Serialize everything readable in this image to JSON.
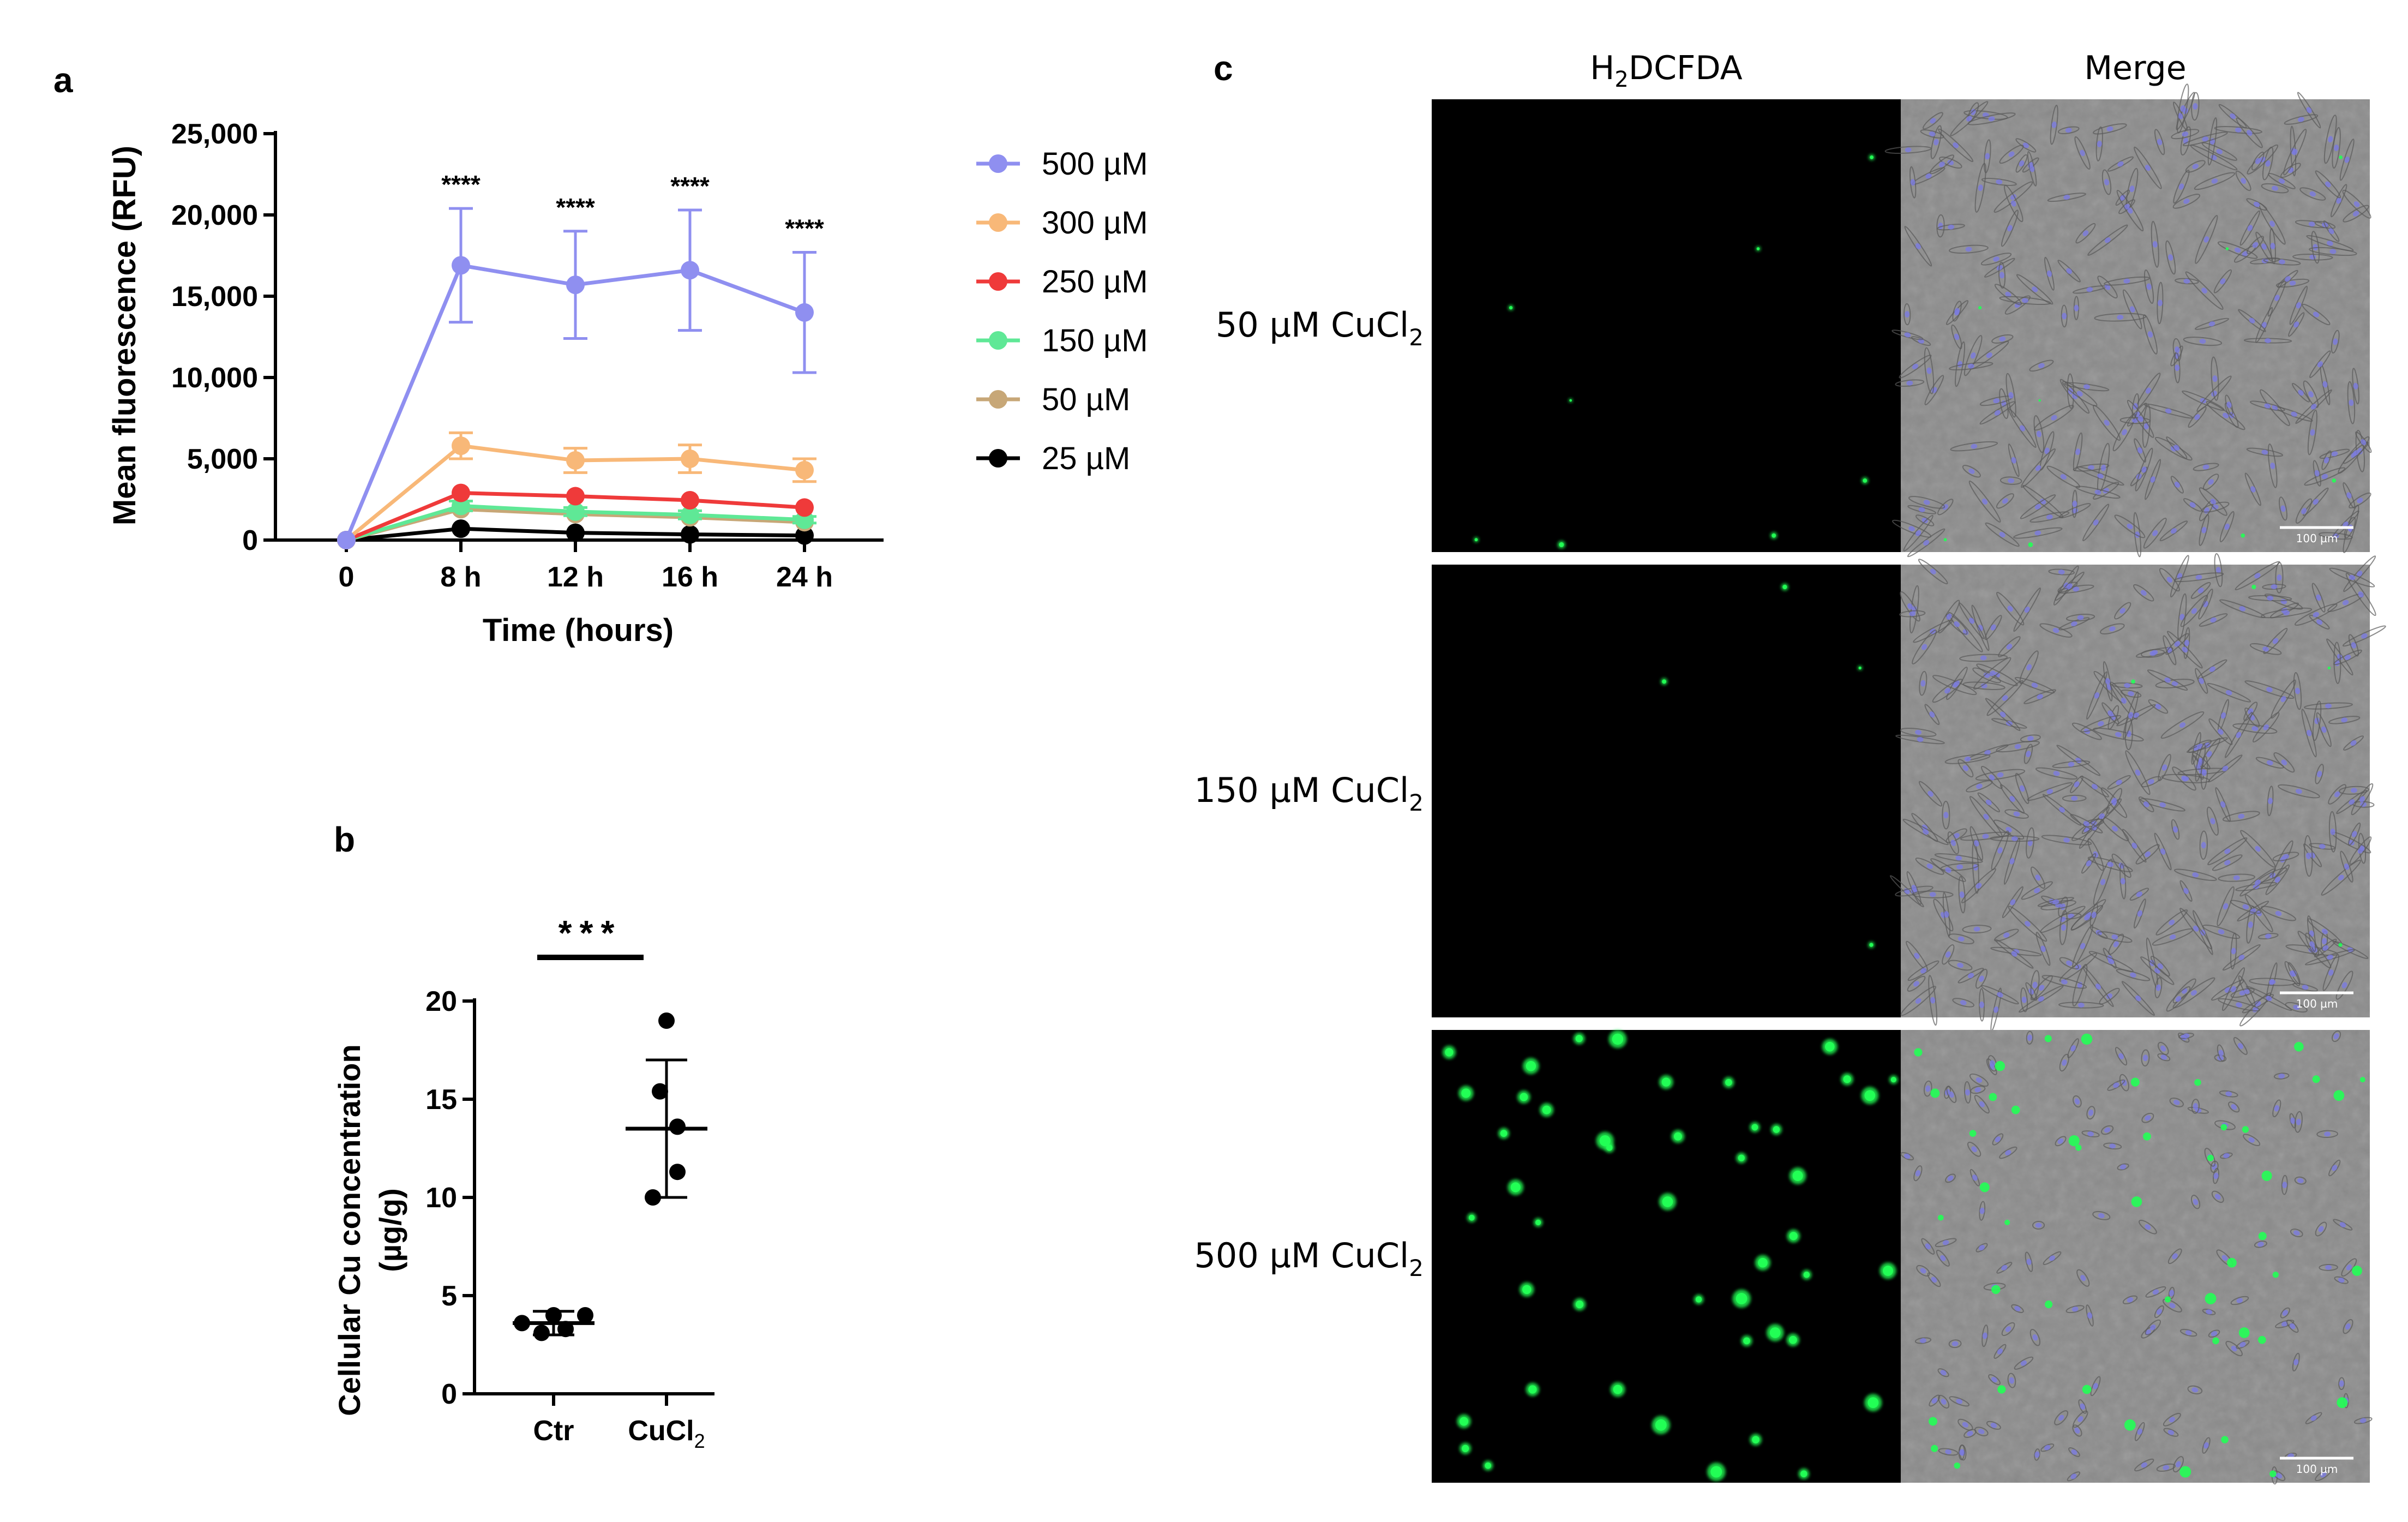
{
  "panels": {
    "a": "a",
    "b": "b",
    "c": "c"
  },
  "chart_data": [
    {
      "type": "line",
      "panel": "a",
      "categories": [
        "0",
        "8 h",
        "12 h",
        "16 h",
        "24 h"
      ],
      "xlabel": "Time (hours)",
      "ylabel": "Mean fluorescence (RFU)",
      "ylim": [
        0,
        25000
      ],
      "yticks": [
        0,
        5000,
        10000,
        15000,
        20000,
        25000
      ],
      "ytick_labels": [
        "0",
        "5,000",
        "10,000",
        "15,000",
        "20,000",
        "25,000"
      ],
      "legend_position": "right",
      "series": [
        {
          "name": "500 µM",
          "color": "#8f8ff0",
          "values": [
            0,
            16900,
            15700,
            16600,
            14000
          ],
          "errors": [
            0,
            3500,
            3300,
            3700,
            3700
          ]
        },
        {
          "name": "300 µM",
          "color": "#f8b878",
          "values": [
            0,
            5800,
            4900,
            5000,
            4300
          ],
          "errors": [
            0,
            800,
            750,
            850,
            700
          ]
        },
        {
          "name": "250 µM",
          "color": "#ef3a3a",
          "values": [
            0,
            2900,
            2700,
            2450,
            2000
          ],
          "errors": [
            0,
            0,
            0,
            0,
            0
          ]
        },
        {
          "name": "150 µM",
          "color": "#5fe896",
          "values": [
            0,
            2100,
            1750,
            1550,
            1250
          ],
          "errors": [
            0,
            300,
            250,
            250,
            200
          ]
        },
        {
          "name": "50 µM",
          "color": "#c7a777",
          "values": [
            0,
            1900,
            1600,
            1400,
            1100
          ],
          "errors": [
            0,
            0,
            0,
            0,
            0
          ]
        },
        {
          "name": "25 µM",
          "color": "#000000",
          "values": [
            0,
            700,
            450,
            350,
            280
          ],
          "errors": [
            0,
            0,
            0,
            0,
            0
          ]
        }
      ],
      "annotations": [
        {
          "category": "8 h",
          "text": "****"
        },
        {
          "category": "12 h",
          "text": "****"
        },
        {
          "category": "16 h",
          "text": "****"
        },
        {
          "category": "24 h",
          "text": "****"
        }
      ]
    },
    {
      "type": "scatter",
      "panel": "b",
      "categories": [
        "Ctr",
        "CuCl2"
      ],
      "category_labels": [
        {
          "base": "Ctr",
          "sub": ""
        },
        {
          "base": "CuCl",
          "sub": "2"
        }
      ],
      "ylabel_lines": [
        "Cellular Cu concentration",
        "(µg/g)"
      ],
      "ylim": [
        0,
        20
      ],
      "yticks": [
        0,
        5,
        10,
        15,
        20
      ],
      "ytick_labels": [
        "0",
        "5",
        "10",
        "15",
        "20"
      ],
      "groups": [
        {
          "name": "Ctr",
          "points": [
            3.1,
            3.3,
            3.6,
            4.0,
            4.0
          ],
          "mean": 3.6,
          "sd_low": 3.0,
          "sd_high": 4.2
        },
        {
          "name": "CuCl2",
          "points": [
            10.0,
            11.3,
            13.6,
            15.4,
            19.0
          ],
          "mean": 13.5,
          "sd_low": 10.0,
          "sd_high": 17.0
        }
      ],
      "significance": "***"
    }
  ],
  "microscopy": {
    "column_headers": [
      {
        "base": "H",
        "sub": "2",
        "rest": "DCFDA"
      },
      {
        "base": "Merge",
        "sub": "",
        "rest": ""
      }
    ],
    "rows": [
      {
        "label": {
          "prefix": "50 µM CuCl",
          "sub": "2"
        },
        "scale_bar": "100 µm"
      },
      {
        "label": {
          "prefix": "150 µM CuCl",
          "sub": "2"
        },
        "scale_bar": "100 µm"
      },
      {
        "label": {
          "prefix": "500 µM CuCl",
          "sub": "2"
        },
        "scale_bar": "100 µm"
      }
    ],
    "colors": {
      "fluorescence": "#22ff55",
      "nuclei": "#7a7ae0",
      "background_dark": "#000000",
      "background_bright": "#8c8c8c"
    }
  }
}
